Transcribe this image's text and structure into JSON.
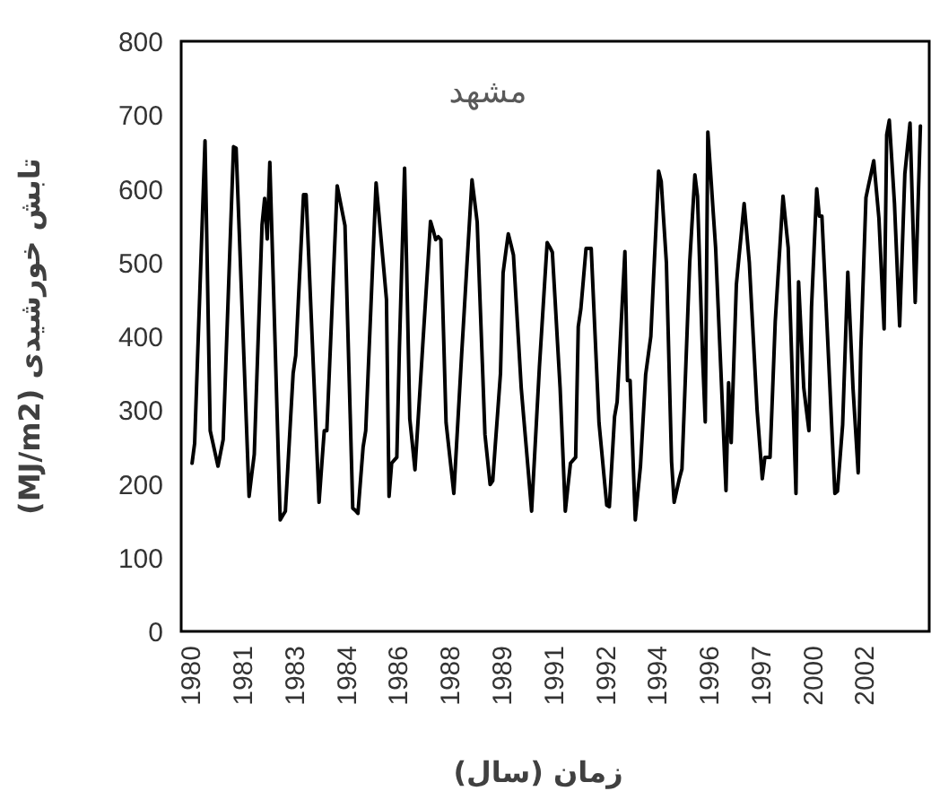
{
  "chart_data": {
    "type": "line",
    "xlabel": "زمان (سال)",
    "ylabel": "تابش خورشیدی (MJ/m2)",
    "annotations": [
      "مشهد"
    ],
    "color": "#000000",
    "ylim": [
      0,
      800
    ],
    "yticks": [
      0,
      100,
      200,
      300,
      400,
      500,
      600,
      700,
      800
    ],
    "categories": [
      "1980",
      null,
      null,
      null,
      null,
      null,
      null,
      null,
      null,
      null,
      null,
      null,
      null,
      null,
      null,
      null,
      null,
      null,
      null,
      null,
      "1981",
      null,
      null,
      null,
      null,
      null,
      null,
      null,
      null,
      null,
      null,
      null,
      null,
      null,
      null,
      null,
      null,
      null,
      null,
      null,
      "1983",
      null,
      null,
      null,
      null,
      null,
      null,
      null,
      null,
      null,
      null,
      null,
      null,
      null,
      null,
      null,
      null,
      null,
      null,
      null,
      "1984",
      null,
      null,
      null,
      null,
      null,
      null,
      null,
      null,
      null,
      null,
      null,
      null,
      null,
      null,
      null,
      null,
      null,
      null,
      null,
      "1986",
      null,
      null,
      null,
      null,
      null,
      null,
      null,
      null,
      null,
      null,
      null,
      null,
      null,
      null,
      null,
      null,
      null,
      null,
      null,
      "1988",
      null,
      null,
      null,
      null,
      null,
      null,
      null,
      null,
      null,
      null,
      null,
      null,
      null,
      null,
      null,
      null,
      null,
      null,
      null,
      "1989",
      null,
      null,
      null,
      null,
      null,
      null,
      null,
      null,
      null,
      null,
      null,
      null,
      null,
      null,
      null,
      null,
      null,
      null,
      null,
      "1991",
      null,
      null,
      null,
      null,
      null,
      null,
      null,
      null,
      null,
      null,
      null,
      null,
      null,
      null,
      null,
      null,
      null,
      null,
      null,
      "1992",
      null,
      null,
      null,
      null,
      null,
      null,
      null,
      null,
      null,
      null,
      null,
      null,
      null,
      null,
      null,
      null,
      null,
      null,
      null,
      "1994",
      null,
      null,
      null,
      null,
      null,
      null,
      null,
      null,
      null,
      null,
      null,
      null,
      null,
      null,
      null,
      null,
      null,
      null,
      null,
      "1996",
      null,
      null,
      null,
      null,
      null,
      null,
      null,
      null,
      null,
      null,
      null,
      null,
      null,
      null,
      null,
      null,
      null,
      null,
      null,
      "1997",
      null,
      null,
      null,
      null,
      null,
      null,
      null,
      null,
      null,
      null,
      null,
      null,
      null,
      null,
      null,
      null,
      null,
      null,
      null,
      "2000",
      null,
      null,
      null,
      null,
      null,
      null,
      null,
      null,
      null,
      null,
      null,
      null,
      null,
      null,
      null,
      null,
      null,
      null,
      null,
      "2002",
      null,
      null,
      null,
      null,
      null,
      null,
      null,
      null,
      null,
      null,
      null,
      null,
      null,
      null,
      null,
      null,
      null,
      null,
      null,
      null,
      null
    ],
    "values": [
      228,
      255,
      358,
      460,
      563,
      665,
      469,
      272,
      256,
      240,
      224,
      242,
      260,
      359,
      459,
      558,
      657,
      655,
      561,
      466,
      372,
      278,
      183,
      212,
      240,
      344,
      447,
      551,
      587,
      532,
      636,
      515,
      394,
      272,
      151,
      157,
      163,
      225,
      288,
      350,
      374,
      447,
      519,
      592,
      592,
      509,
      425,
      342,
      258,
      175,
      224,
      272,
      272,
      355,
      438,
      521,
      604,
      586,
      568,
      550,
      422,
      295,
      167,
      164,
      160,
      205,
      250,
      272,
      356,
      440,
      524,
      608,
      569,
      529,
      490,
      450,
      183,
      228,
      232,
      236,
      385,
      507,
      628,
      458,
      288,
      254,
      219,
      275,
      331,
      388,
      444,
      500,
      556,
      544,
      531,
      535,
      531,
      407,
      283,
      251,
      219,
      187,
      250,
      312,
      375,
      434,
      494,
      553,
      612,
      584,
      555,
      459,
      363,
      267,
      233,
      199,
      204,
      253,
      301,
      350,
      486,
      513,
      539,
      525,
      510,
      450,
      390,
      330,
      288,
      247,
      205,
      163,
      228,
      293,
      358,
      414,
      471,
      527,
      521,
      514,
      453,
      391,
      330,
      247,
      163,
      196,
      228,
      232,
      236,
      413,
      437,
      478,
      519,
      519,
      519,
      440,
      362,
      283,
      246,
      208,
      171,
      169,
      230,
      291,
      311,
      379,
      447,
      515,
      340,
      340,
      246,
      151,
      188,
      224,
      286,
      348,
      374,
      400,
      475,
      549,
      624,
      610,
      555,
      500,
      365,
      230,
      175,
      191,
      207,
      220,
      313,
      407,
      500,
      560,
      619,
      590,
      480,
      369,
      284,
      677,
      625,
      572,
      520,
      438,
      356,
      273,
      191,
      337,
      256,
      363,
      470,
      507,
      543,
      580,
      540,
      500,
      433,
      367,
      300,
      254,
      207,
      236,
      236,
      236,
      328,
      420,
      477,
      533,
      590,
      555,
      520,
      409,
      298,
      187,
      474,
      402,
      330,
      301,
      272,
      440,
      520,
      600,
      563,
      563,
      488,
      413,
      338,
      262,
      187,
      190,
      235,
      280,
      384,
      487,
      409,
      330,
      273,
      215,
      380,
      484,
      588,
      605,
      621,
      638,
      599,
      560,
      485,
      410,
      673,
      693,
      637,
      580,
      497,
      414,
      517,
      620,
      655,
      689,
      568,
      446,
      566,
      685
    ]
  }
}
